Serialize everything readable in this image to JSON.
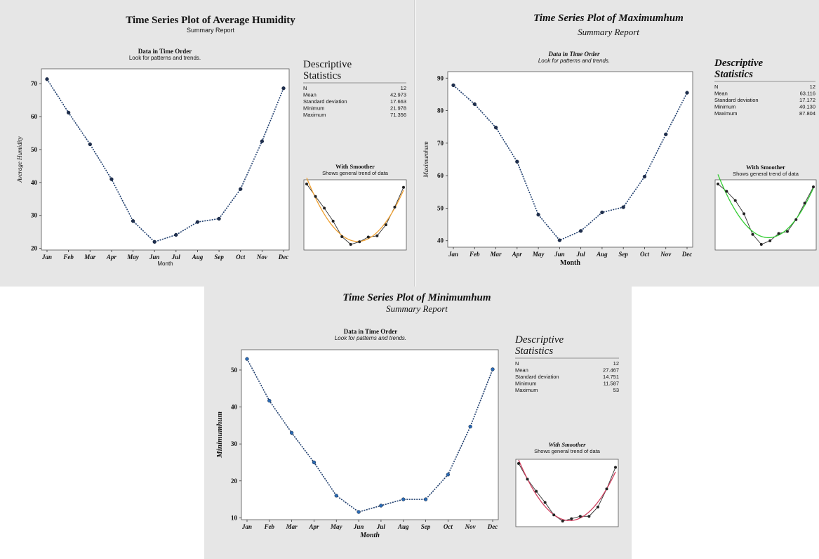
{
  "colors": {
    "panel_bg": "#e6e6e6",
    "plot_bg": "#ffffff",
    "data_line": "#1f3e6e",
    "data_marker_dark": "#1f2f4f",
    "data_marker_blue": "#2a6bb5",
    "smoother_orange": "#f0a030",
    "smoother_green": "#33cc33",
    "smoother_red": "#d04060",
    "smoother_points": "#222222"
  },
  "chart_data": [
    {
      "type": "line",
      "title": "Time Series Plot of Average Humidity",
      "subtitle": "Summary Report",
      "plot_heading": "Data in Time Order",
      "plot_subheading": "Look for patterns and trends.",
      "xlabel": "Month",
      "ylabel": "Average Humidity",
      "categories": [
        "Jan",
        "Feb",
        "Mar",
        "Apr",
        "May",
        "Jun",
        "Jul",
        "Aug",
        "Sep",
        "Oct",
        "Nov",
        "Dec"
      ],
      "values": [
        71.356,
        61.2,
        51.6,
        41.0,
        28.3,
        21.978,
        24.1,
        28.0,
        29.0,
        38.0,
        52.5,
        68.6
      ],
      "ylim": [
        19.5,
        74.5
      ],
      "yticks": [
        20,
        30,
        40,
        50,
        60,
        70
      ],
      "grid": false,
      "stats_title": [
        "Descriptive",
        "Statistics"
      ],
      "stats": [
        {
          "label": "N",
          "value": "12"
        },
        {
          "label": "Mean",
          "value": "42.973"
        },
        {
          "label": "Standard deviation",
          "value": "17.663"
        },
        {
          "label": "Minimum",
          "value": "21.978"
        },
        {
          "label": "Maximum",
          "value": "71.356"
        }
      ],
      "smoother_title": "With Smoother",
      "smoother_subtitle": "Shows general trend of data",
      "smoother_color": "orange"
    },
    {
      "type": "line",
      "title": "Time Series Plot of Maximumhum",
      "subtitle": "Summary Report",
      "plot_heading": "Data in Time Order",
      "plot_subheading": "Look for patterns and trends.",
      "xlabel": "Month",
      "ylabel": "Maximumhum",
      "categories": [
        "Jan",
        "Feb",
        "Mar",
        "Apr",
        "May",
        "Jun",
        "Jul",
        "Aug",
        "Sep",
        "Oct",
        "Nov",
        "Dec"
      ],
      "values": [
        87.804,
        82.0,
        74.8,
        64.3,
        48.0,
        40.13,
        43.0,
        48.7,
        50.3,
        59.7,
        72.7,
        85.5
      ],
      "ylim": [
        38,
        92
      ],
      "yticks": [
        40,
        50,
        60,
        70,
        80,
        90
      ],
      "grid": false,
      "stats_title": [
        "Descriptive",
        "Statistics"
      ],
      "stats": [
        {
          "label": "N",
          "value": "12"
        },
        {
          "label": "Mean",
          "value": "63.116"
        },
        {
          "label": "Standard deviation",
          "value": "17.172"
        },
        {
          "label": "Minimum",
          "value": "40.130"
        },
        {
          "label": "Maximum",
          "value": "87.804"
        }
      ],
      "smoother_title": "With Smoother",
      "smoother_subtitle": "Shows general trend of data",
      "smoother_color": "green"
    },
    {
      "type": "line",
      "title": "Time Series Plot of Minimumhum",
      "subtitle": "Summary Report",
      "plot_heading": "Data in Time Order",
      "plot_subheading": "Look for patterns and trends.",
      "xlabel": "Month",
      "ylabel": "Minimumhum",
      "categories": [
        "Jan",
        "Feb",
        "Mar",
        "Apr",
        "May",
        "Jun",
        "Jul",
        "Aug",
        "Sep",
        "Oct",
        "Nov",
        "Dec"
      ],
      "values": [
        53,
        41.7,
        33.0,
        25.0,
        16.0,
        11.587,
        13.3,
        15.0,
        15.0,
        21.7,
        34.7,
        50.2
      ],
      "ylim": [
        9.5,
        55.5
      ],
      "yticks": [
        10,
        20,
        30,
        40,
        50
      ],
      "grid": false,
      "stats_title": [
        "Descriptive",
        "Statistics"
      ],
      "stats": [
        {
          "label": "N",
          "value": "12"
        },
        {
          "label": "Mean",
          "value": "27.467"
        },
        {
          "label": "Standard deviation",
          "value": "14.751"
        },
        {
          "label": "Minimum",
          "value": "11.587"
        },
        {
          "label": "Maximum",
          "value": "53"
        }
      ],
      "smoother_title": "With Smoother",
      "smoother_subtitle": "Shows general trend of data",
      "smoother_color": "red"
    }
  ]
}
